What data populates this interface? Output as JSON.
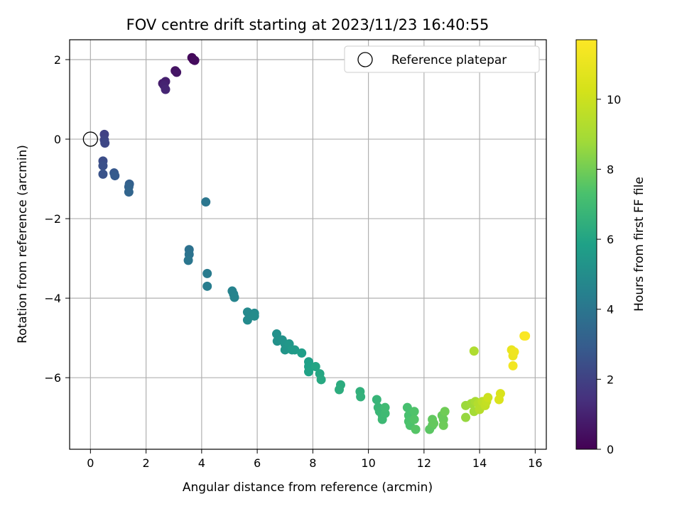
{
  "chart_data": {
    "type": "scatter",
    "title": "FOV centre drift starting at 2023/11/23 16:40:55",
    "xlabel": "Angular distance from reference (arcmin)",
    "ylabel": "Rotation from reference (arcmin)",
    "xlim": [
      -0.75,
      16.4
    ],
    "ylim": [
      -7.8,
      2.5
    ],
    "xticks": [
      0,
      2,
      4,
      6,
      8,
      10,
      12,
      14,
      16
    ],
    "yticks": [
      -6,
      -4,
      -2,
      0,
      2
    ],
    "grid": true,
    "legend": {
      "placement": "top-right",
      "entries": [
        "Reference platepar"
      ]
    },
    "reference_point": {
      "x": 0,
      "y": 0
    },
    "colorbar": {
      "label": "Hours from first FF file",
      "range": [
        0,
        11.7
      ],
      "ticks": [
        0,
        2,
        4,
        6,
        8,
        10
      ],
      "colormap": "viridis"
    },
    "points": [
      {
        "x": 3.7,
        "y": 2.0,
        "t": 0.1
      },
      {
        "x": 3.65,
        "y": 2.05,
        "t": 0.2
      },
      {
        "x": 3.75,
        "y": 1.98,
        "t": 0.3
      },
      {
        "x": 3.05,
        "y": 1.72,
        "t": 0.5
      },
      {
        "x": 3.1,
        "y": 1.68,
        "t": 0.6
      },
      {
        "x": 2.6,
        "y": 1.4,
        "t": 0.8
      },
      {
        "x": 2.7,
        "y": 1.45,
        "t": 0.9
      },
      {
        "x": 2.65,
        "y": 1.35,
        "t": 1.0
      },
      {
        "x": 2.7,
        "y": 1.25,
        "t": 1.1
      },
      {
        "x": 0.5,
        "y": 0.12,
        "t": 2.0
      },
      {
        "x": 0.5,
        "y": -0.02,
        "t": 2.1
      },
      {
        "x": 0.52,
        "y": -0.1,
        "t": 2.2
      },
      {
        "x": 0.45,
        "y": -0.55,
        "t": 2.4
      },
      {
        "x": 0.45,
        "y": -0.67,
        "t": 2.5
      },
      {
        "x": 0.45,
        "y": -0.88,
        "t": 2.6
      },
      {
        "x": 0.85,
        "y": -0.85,
        "t": 2.8
      },
      {
        "x": 0.88,
        "y": -0.92,
        "t": 2.9
      },
      {
        "x": 1.4,
        "y": -1.13,
        "t": 3.1
      },
      {
        "x": 1.38,
        "y": -1.2,
        "t": 3.2
      },
      {
        "x": 1.38,
        "y": -1.33,
        "t": 3.3
      },
      {
        "x": 4.15,
        "y": -1.58,
        "t": 4.0
      },
      {
        "x": 3.55,
        "y": -2.78,
        "t": 3.8
      },
      {
        "x": 3.55,
        "y": -2.9,
        "t": 3.9
      },
      {
        "x": 3.52,
        "y": -3.05,
        "t": 4.0
      },
      {
        "x": 4.2,
        "y": -3.38,
        "t": 4.2
      },
      {
        "x": 4.2,
        "y": -3.7,
        "t": 4.3
      },
      {
        "x": 5.1,
        "y": -3.82,
        "t": 4.5
      },
      {
        "x": 5.15,
        "y": -3.9,
        "t": 4.55
      },
      {
        "x": 5.18,
        "y": -3.98,
        "t": 4.6
      },
      {
        "x": 5.65,
        "y": -4.35,
        "t": 4.8
      },
      {
        "x": 5.65,
        "y": -4.55,
        "t": 4.85
      },
      {
        "x": 5.9,
        "y": -4.38,
        "t": 4.9
      },
      {
        "x": 5.9,
        "y": -4.45,
        "t": 4.95
      },
      {
        "x": 6.7,
        "y": -4.9,
        "t": 5.1
      },
      {
        "x": 6.72,
        "y": -5.08,
        "t": 5.15
      },
      {
        "x": 6.9,
        "y": -5.05,
        "t": 5.2
      },
      {
        "x": 7.0,
        "y": -5.15,
        "t": 5.3
      },
      {
        "x": 7.0,
        "y": -5.3,
        "t": 5.35
      },
      {
        "x": 7.15,
        "y": -5.15,
        "t": 5.4
      },
      {
        "x": 7.25,
        "y": -5.3,
        "t": 5.5
      },
      {
        "x": 7.35,
        "y": -5.3,
        "t": 5.6
      },
      {
        "x": 7.6,
        "y": -5.38,
        "t": 5.7
      },
      {
        "x": 7.85,
        "y": -5.6,
        "t": 5.8
      },
      {
        "x": 7.85,
        "y": -5.72,
        "t": 5.85
      },
      {
        "x": 7.85,
        "y": -5.85,
        "t": 5.9
      },
      {
        "x": 8.1,
        "y": -5.72,
        "t": 6.0
      },
      {
        "x": 8.25,
        "y": -5.9,
        "t": 6.1
      },
      {
        "x": 8.3,
        "y": -6.05,
        "t": 6.15
      },
      {
        "x": 9.0,
        "y": -6.18,
        "t": 6.3
      },
      {
        "x": 8.95,
        "y": -6.3,
        "t": 6.35
      },
      {
        "x": 9.7,
        "y": -6.35,
        "t": 6.5
      },
      {
        "x": 9.72,
        "y": -6.48,
        "t": 6.55
      },
      {
        "x": 10.3,
        "y": -6.55,
        "t": 6.7
      },
      {
        "x": 10.35,
        "y": -6.75,
        "t": 6.75
      },
      {
        "x": 10.4,
        "y": -6.85,
        "t": 6.8
      },
      {
        "x": 10.5,
        "y": -6.95,
        "t": 6.85
      },
      {
        "x": 10.5,
        "y": -7.05,
        "t": 6.9
      },
      {
        "x": 10.6,
        "y": -6.9,
        "t": 6.95
      },
      {
        "x": 10.6,
        "y": -6.75,
        "t": 7.0
      },
      {
        "x": 11.4,
        "y": -6.75,
        "t": 7.2
      },
      {
        "x": 11.45,
        "y": -6.95,
        "t": 7.25
      },
      {
        "x": 11.45,
        "y": -7.1,
        "t": 7.3
      },
      {
        "x": 11.5,
        "y": -7.2,
        "t": 7.35
      },
      {
        "x": 11.65,
        "y": -6.85,
        "t": 7.4
      },
      {
        "x": 11.65,
        "y": -7.05,
        "t": 7.45
      },
      {
        "x": 11.7,
        "y": -7.3,
        "t": 7.5
      },
      {
        "x": 12.2,
        "y": -7.3,
        "t": 7.6
      },
      {
        "x": 12.3,
        "y": -7.2,
        "t": 7.65
      },
      {
        "x": 12.3,
        "y": -7.05,
        "t": 7.7
      },
      {
        "x": 12.35,
        "y": -7.15,
        "t": 7.75
      },
      {
        "x": 12.65,
        "y": -6.95,
        "t": 7.8
      },
      {
        "x": 12.7,
        "y": -7.05,
        "t": 7.85
      },
      {
        "x": 12.7,
        "y": -7.2,
        "t": 7.9
      },
      {
        "x": 12.75,
        "y": -6.85,
        "t": 7.95
      },
      {
        "x": 13.5,
        "y": -7.0,
        "t": 8.6
      },
      {
        "x": 13.5,
        "y": -6.7,
        "t": 8.7
      },
      {
        "x": 13.7,
        "y": -6.65,
        "t": 8.8
      },
      {
        "x": 13.8,
        "y": -6.85,
        "t": 8.9
      },
      {
        "x": 13.85,
        "y": -6.6,
        "t": 9.0
      },
      {
        "x": 13.8,
        "y": -5.33,
        "t": 9.2
      },
      {
        "x": 13.95,
        "y": -6.65,
        "t": 9.3
      },
      {
        "x": 14.0,
        "y": -6.8,
        "t": 9.4
      },
      {
        "x": 14.1,
        "y": -6.6,
        "t": 9.6
      },
      {
        "x": 14.2,
        "y": -6.7,
        "t": 9.7
      },
      {
        "x": 14.25,
        "y": -6.6,
        "t": 9.8
      },
      {
        "x": 14.3,
        "y": -6.5,
        "t": 10.0
      },
      {
        "x": 14.75,
        "y": -6.4,
        "t": 10.4
      },
      {
        "x": 14.7,
        "y": -6.55,
        "t": 10.5
      },
      {
        "x": 15.15,
        "y": -5.3,
        "t": 11.0
      },
      {
        "x": 15.2,
        "y": -5.45,
        "t": 11.1
      },
      {
        "x": 15.25,
        "y": -5.35,
        "t": 11.2
      },
      {
        "x": 15.2,
        "y": -5.7,
        "t": 11.3
      },
      {
        "x": 15.6,
        "y": -4.95,
        "t": 11.5
      },
      {
        "x": 15.65,
        "y": -4.95,
        "t": 11.6
      }
    ]
  }
}
